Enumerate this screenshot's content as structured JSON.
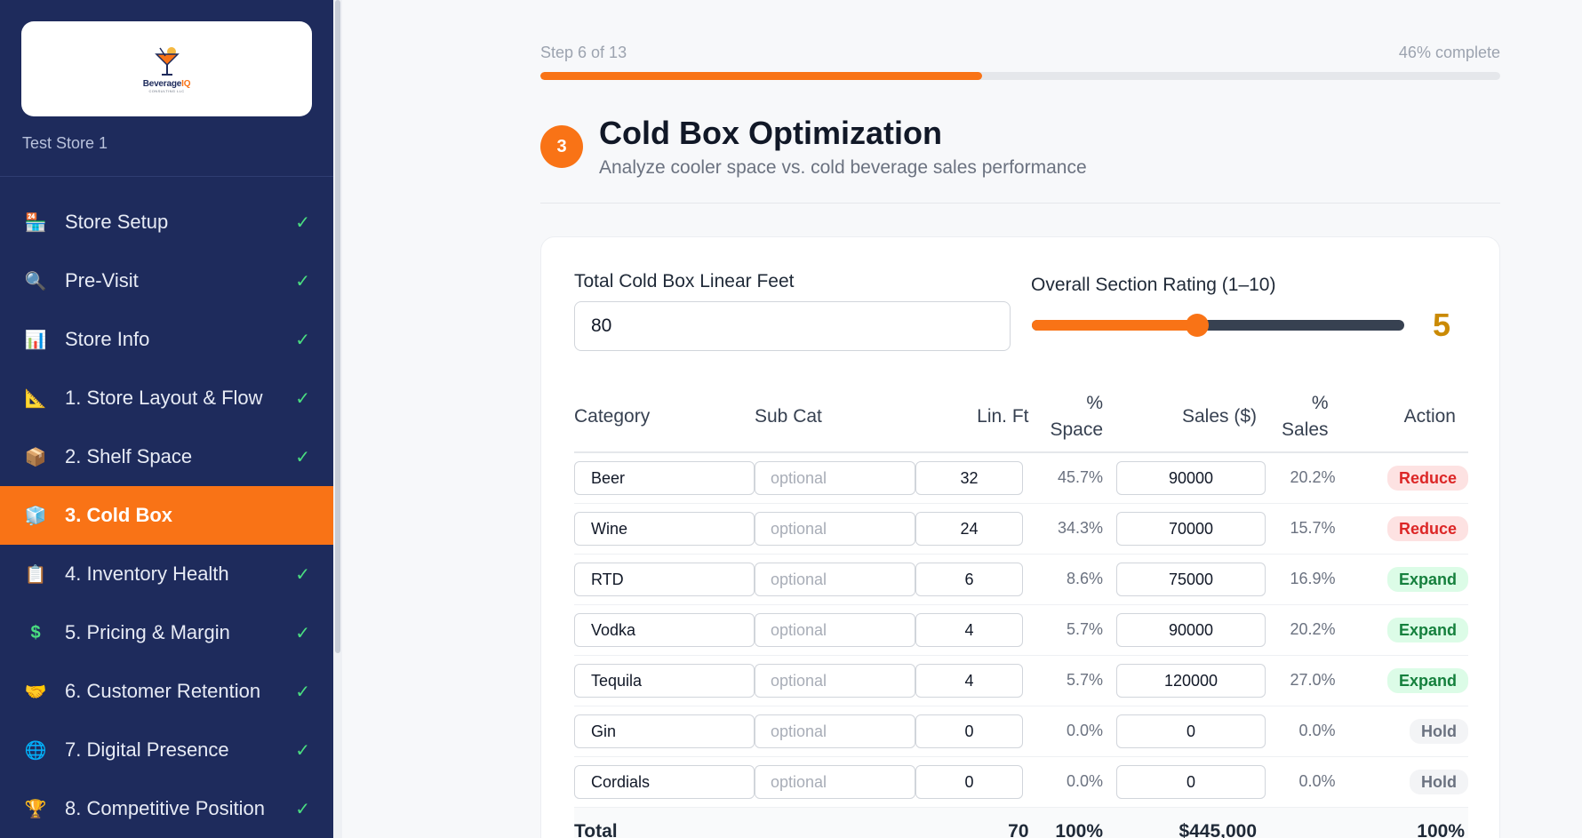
{
  "sidebar": {
    "logo": {
      "brand_a": "Beverage",
      "brand_b": "IQ",
      "sub": "CONSULTING LLC"
    },
    "store_name": "Test Store 1",
    "items": [
      {
        "icon": "🏪",
        "label": "Store Setup",
        "check": "✓",
        "active": false,
        "icon_name": "store-icon"
      },
      {
        "icon": "🔍",
        "label": "Pre-Visit",
        "check": "✓",
        "active": false,
        "icon_name": "magnifier-icon"
      },
      {
        "icon": "📊",
        "label": "Store Info",
        "check": "✓",
        "active": false,
        "icon_name": "bar-chart-icon"
      },
      {
        "icon": "📐",
        "label": "1. Store Layout & Flow",
        "check": "✓",
        "active": false,
        "icon_name": "triangle-ruler-icon"
      },
      {
        "icon": "📦",
        "label": "2. Shelf Space",
        "check": "✓",
        "active": false,
        "icon_name": "package-icon"
      },
      {
        "icon": "🧊",
        "label": "3. Cold Box",
        "check": "",
        "active": true,
        "icon_name": "ice-cube-icon"
      },
      {
        "icon": "📋",
        "label": "4. Inventory Health",
        "check": "✓",
        "active": false,
        "icon_name": "clipboard-icon"
      },
      {
        "icon": "$",
        "label": "5. Pricing & Margin",
        "check": "✓",
        "active": false,
        "icon_name": "dollar-icon"
      },
      {
        "icon": "🤝",
        "label": "6. Customer Retention",
        "check": "✓",
        "active": false,
        "icon_name": "handshake-icon"
      },
      {
        "icon": "🌐",
        "label": "7. Digital Presence",
        "check": "✓",
        "active": false,
        "icon_name": "globe-icon"
      },
      {
        "icon": "🏆",
        "label": "8. Competitive Position",
        "check": "✓",
        "active": false,
        "icon_name": "trophy-icon"
      }
    ]
  },
  "progress": {
    "step_label": "Step 6 of 13",
    "complete_label": "46% complete",
    "fraction": 0.46
  },
  "section": {
    "number": "3",
    "title": "Cold Box Optimization",
    "subtitle": "Analyze cooler space vs. cold beverage sales performance"
  },
  "form": {
    "linear_feet_label": "Total Cold Box Linear Feet",
    "linear_feet_value": "80",
    "rating_label": "Overall Section Rating (1–10)",
    "rating_value": "5",
    "rating_min": 1,
    "rating_max": 10
  },
  "table": {
    "headers": {
      "category": "Category",
      "subcat": "Sub Cat",
      "linft": "Lin. Ft",
      "space_a": "%",
      "space_b": "Space",
      "sales": "Sales ($)",
      "salespct_a": "%",
      "salespct_b": "Sales",
      "action": "Action"
    },
    "subcat_placeholder": "optional",
    "rows": [
      {
        "category": "Beer",
        "linft": "32",
        "space": "45.7%",
        "sales": "90000",
        "sales_pct": "20.2%",
        "action": "Reduce",
        "kind": "reduce"
      },
      {
        "category": "Wine",
        "linft": "24",
        "space": "34.3%",
        "sales": "70000",
        "sales_pct": "15.7%",
        "action": "Reduce",
        "kind": "reduce"
      },
      {
        "category": "RTD",
        "linft": "6",
        "space": "8.6%",
        "sales": "75000",
        "sales_pct": "16.9%",
        "action": "Expand",
        "kind": "expand"
      },
      {
        "category": "Vodka",
        "linft": "4",
        "space": "5.7%",
        "sales": "90000",
        "sales_pct": "20.2%",
        "action": "Expand",
        "kind": "expand"
      },
      {
        "category": "Tequila",
        "linft": "4",
        "space": "5.7%",
        "sales": "120000",
        "sales_pct": "27.0%",
        "action": "Expand",
        "kind": "expand"
      },
      {
        "category": "Gin",
        "linft": "0",
        "space": "0.0%",
        "sales": "0",
        "sales_pct": "0.0%",
        "action": "Hold",
        "kind": "hold"
      },
      {
        "category": "Cordials",
        "linft": "0",
        "space": "0.0%",
        "sales": "0",
        "sales_pct": "0.0%",
        "action": "Hold",
        "kind": "hold"
      }
    ],
    "total": {
      "label": "Total",
      "linft": "70",
      "space": "100%",
      "sales": "$445,000",
      "sales_pct": "100%"
    }
  },
  "colors": {
    "accent": "#f97316",
    "sidebar_bg": "#1e2b5c",
    "check": "#4ade80",
    "rating": "#ca8a04"
  }
}
